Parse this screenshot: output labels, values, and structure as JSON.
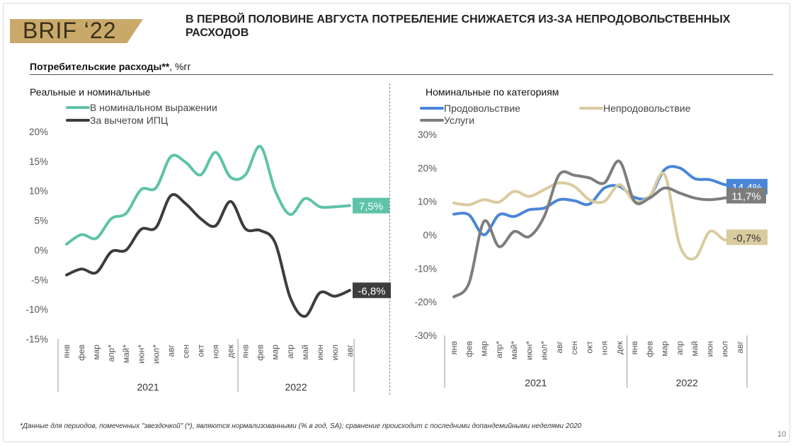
{
  "header": {
    "logo_text": "BRIF ‘22",
    "headline": "В ПЕРВОЙ ПОЛОВИНЕ АВГУСТА ПОТРЕБЛЕНИЕ СНИЖАЕТСЯ ИЗ-ЗА НЕПРОДОВОЛЬСТВЕННЫХ РАСХОДОВ",
    "subtitle_bold": "Потребительские расходы**",
    "subtitle_rest": ", %гг"
  },
  "footnote": "*Данные для периодов, помеченных \"звездочкой\" (*), являются нормализованными (% в год, SA); сравнение происходит с последними допандемийными неделями 2020",
  "page_number": "10",
  "colors": {
    "teal": "#5ec3a8",
    "dark": "#3d3d3d",
    "blue": "#4a86d8",
    "beige": "#d9cba0",
    "gray": "#7d7d7d"
  },
  "chart_data": [
    {
      "type": "line",
      "title": "Реальные и номинальные",
      "x": [
        "янв",
        "фев",
        "мар",
        "апр*",
        "май*",
        "июн*",
        "июл*",
        "авг",
        "сен",
        "окт",
        "ноя",
        "дек",
        "янв",
        "фев",
        "мар",
        "апр",
        "май",
        "июн",
        "июл",
        "авг"
      ],
      "year_groups": [
        {
          "label": "2021",
          "count": 12
        },
        {
          "label": "2022",
          "count": 8
        }
      ],
      "ylim": [
        -15,
        20
      ],
      "yticks": [
        "20%",
        "15%",
        "10%",
        "5%",
        "0%",
        "-5%",
        "-10%",
        "-15%"
      ],
      "grid": false,
      "legend_position": "top-left",
      "series": [
        {
          "name": "В номинальном выражении",
          "color": "#5ec3a8",
          "end_label": "7,5%",
          "values": [
            1.0,
            2.6,
            2.0,
            5.3,
            6.2,
            10.2,
            10.5,
            15.8,
            14.8,
            12.7,
            16.5,
            12.3,
            12.7,
            17.5,
            10.0,
            6.0,
            8.7,
            7.3,
            7.3,
            7.5
          ]
        },
        {
          "name": "За вычетом ИПЦ",
          "color": "#3d3d3d",
          "end_label": "-6,8%",
          "values": [
            -4.2,
            -3.2,
            -3.8,
            -0.3,
            0.0,
            3.5,
            3.8,
            9.2,
            7.8,
            5.3,
            4.1,
            8.2,
            3.6,
            3.3,
            1.2,
            -8.0,
            -11.2,
            -7.2,
            -7.8,
            -6.8
          ]
        }
      ]
    },
    {
      "type": "line",
      "title": "Номинальные по категориям",
      "x": [
        "янв",
        "фев",
        "мар",
        "апр*",
        "май*",
        "июн*",
        "июл*",
        "авг",
        "сен",
        "окт",
        "ноя",
        "дек",
        "янв",
        "фев",
        "мар",
        "апр",
        "май",
        "июн",
        "июл",
        "авг"
      ],
      "year_groups": [
        {
          "label": "2021",
          "count": 12
        },
        {
          "label": "2022",
          "count": 8
        }
      ],
      "ylim": [
        -30,
        30
      ],
      "yticks": [
        "30%",
        "20%",
        "10%",
        "0%",
        "-10%",
        "-20%",
        "-30%"
      ],
      "grid": false,
      "legend_position": "top-left",
      "series": [
        {
          "name": "Продовольствие",
          "color": "#4a86d8",
          "end_label": "14,4%",
          "values": [
            6.2,
            6.0,
            0.0,
            6.0,
            5.5,
            7.5,
            8.0,
            10.5,
            10.2,
            9.2,
            14.0,
            14.5,
            11.2,
            11.5,
            19.5,
            20.0,
            16.8,
            16.5,
            15.0,
            14.4
          ]
        },
        {
          "name": "Непродовольствие",
          "color": "#d9cba0",
          "end_label": "-0,7%",
          "values": [
            9.5,
            9.0,
            10.5,
            9.8,
            13.0,
            11.5,
            13.5,
            15.5,
            14.5,
            10.5,
            10.0,
            15.0,
            10.0,
            11.5,
            18.0,
            -3.0,
            -7.0,
            1.0,
            -1.5,
            -0.7
          ]
        },
        {
          "name": "Услуги",
          "color": "#7d7d7d",
          "end_label": "11,7%",
          "values": [
            -18.5,
            -14.5,
            4.0,
            -3.5,
            1.0,
            -0.5,
            5.5,
            18.0,
            17.8,
            17.0,
            15.5,
            22.0,
            10.0,
            11.0,
            14.0,
            12.5,
            11.0,
            10.5,
            11.0,
            11.7
          ]
        }
      ]
    }
  ]
}
